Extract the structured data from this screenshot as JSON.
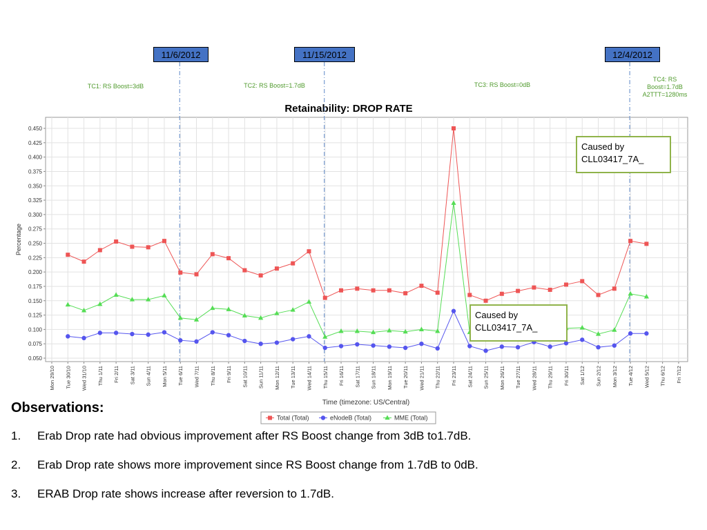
{
  "annotations": {
    "dates": [
      {
        "label": "11/6/2012",
        "x": "Tue 6/11"
      },
      {
        "label": "11/15/2012",
        "x": "Thu 15/11"
      },
      {
        "label": "12/4/2012",
        "x": "Tue 4/12"
      }
    ],
    "test_cases": [
      {
        "label": "TC1: RS Boost=3dB"
      },
      {
        "label": "TC2: RS Boost=1.7dB"
      },
      {
        "label": "TC3: RS Boost=0dB"
      },
      {
        "label": "TC4: RS Boost=1.7dB A2TTT=1280ms"
      }
    ],
    "callouts": [
      {
        "text": "Caused by CLL03417_7A_"
      },
      {
        "text": "Caused by CLL03417_7A_"
      }
    ]
  },
  "chart_data": {
    "type": "line",
    "title": "Retainability: DROP RATE",
    "xlabel": "Time (timezone: US/Central)",
    "ylabel": "Percentage",
    "ylim": [
      0.05,
      0.46
    ],
    "yticks": [
      0.05,
      0.075,
      0.1,
      0.125,
      0.15,
      0.175,
      0.2,
      0.225,
      0.25,
      0.275,
      0.3,
      0.325,
      0.35,
      0.375,
      0.4,
      0.425,
      0.45
    ],
    "grid": true,
    "legend_position": "bottom",
    "categories": [
      "Mon 29/10",
      "Tue 30/10",
      "Wed 31/10",
      "Thu 1/11",
      "Fri 2/11",
      "Sat 3/11",
      "Sun 4/11",
      "Mon 5/11",
      "Tue 6/11",
      "Wed 7/11",
      "Thu 8/11",
      "Fri 9/11",
      "Sat 10/11",
      "Sun 11/11",
      "Mon 12/11",
      "Tue 13/11",
      "Wed 14/11",
      "Thu 15/11",
      "Fri 16/11",
      "Sat 17/11",
      "Sun 18/11",
      "Mon 19/11",
      "Tue 20/11",
      "Wed 21/11",
      "Thu 22/11",
      "Fri 23/11",
      "Sat 24/11",
      "Sun 25/11",
      "Mon 26/11",
      "Tue 27/11",
      "Wed 28/11",
      "Thu 29/11",
      "Fri 30/11",
      "Sat 1/12",
      "Sun 2/12",
      "Mon 3/12",
      "Tue 4/12",
      "Wed 5/12",
      "Thu 6/12",
      "Fri 7/12"
    ],
    "series": [
      {
        "name": "Total (Total)",
        "color": "#ee5555",
        "marker": "square",
        "x": [
          "Tue 30/10",
          "Wed 31/10",
          "Thu 1/11",
          "Fri 2/11",
          "Sat 3/11",
          "Sun 4/11",
          "Mon 5/11",
          "Tue 6/11",
          "Wed 7/11",
          "Thu 8/11",
          "Fri 9/11",
          "Sat 10/11",
          "Sun 11/11",
          "Mon 12/11",
          "Tue 13/11",
          "Wed 14/11",
          "Thu 15/11",
          "Fri 16/11",
          "Sat 17/11",
          "Sun 18/11",
          "Mon 19/11",
          "Tue 20/11",
          "Wed 21/11",
          "Thu 22/11",
          "Fri 23/11",
          "Sat 24/11",
          "Sun 25/11",
          "Mon 26/11",
          "Tue 27/11",
          "Wed 28/11",
          "Thu 29/11",
          "Fri 30/11",
          "Sat 1/12",
          "Sun 2/12",
          "Mon 3/12",
          "Tue 4/12",
          "Wed 5/12"
        ],
        "values": [
          0.23,
          0.218,
          0.238,
          0.253,
          0.244,
          0.243,
          0.254,
          0.199,
          0.196,
          0.231,
          0.224,
          0.203,
          0.194,
          0.206,
          0.215,
          0.236,
          0.155,
          0.168,
          0.171,
          0.168,
          0.168,
          0.163,
          0.176,
          0.164,
          0.45,
          0.16,
          0.15,
          0.162,
          0.167,
          0.173,
          0.169,
          0.178,
          0.184,
          0.16,
          0.171,
          0.254,
          0.249
        ]
      },
      {
        "name": "eNodeB (Total)",
        "color": "#5555ee",
        "marker": "circle",
        "x": [
          "Tue 30/10",
          "Wed 31/10",
          "Thu 1/11",
          "Fri 2/11",
          "Sat 3/11",
          "Sun 4/11",
          "Mon 5/11",
          "Tue 6/11",
          "Wed 7/11",
          "Thu 8/11",
          "Fri 9/11",
          "Sat 10/11",
          "Sun 11/11",
          "Mon 12/11",
          "Tue 13/11",
          "Wed 14/11",
          "Thu 15/11",
          "Fri 16/11",
          "Sat 17/11",
          "Sun 18/11",
          "Mon 19/11",
          "Tue 20/11",
          "Wed 21/11",
          "Thu 22/11",
          "Fri 23/11",
          "Sat 24/11",
          "Sun 25/11",
          "Mon 26/11",
          "Tue 27/11",
          "Wed 28/11",
          "Thu 29/11",
          "Fri 30/11",
          "Sat 1/12",
          "Sun 2/12",
          "Mon 3/12",
          "Tue 4/12",
          "Wed 5/12"
        ],
        "values": [
          0.088,
          0.085,
          0.094,
          0.094,
          0.092,
          0.091,
          0.095,
          0.081,
          0.079,
          0.095,
          0.09,
          0.08,
          0.075,
          0.077,
          0.083,
          0.088,
          0.068,
          0.071,
          0.074,
          0.072,
          0.07,
          0.068,
          0.075,
          0.067,
          0.132,
          0.071,
          0.063,
          0.07,
          0.069,
          0.078,
          0.07,
          0.076,
          0.082,
          0.069,
          0.072,
          0.093,
          0.093
        ]
      },
      {
        "name": "MME (Total)",
        "color": "#55dd55",
        "marker": "triangle",
        "x": [
          "Tue 30/10",
          "Wed 31/10",
          "Thu 1/11",
          "Fri 2/11",
          "Sat 3/11",
          "Sun 4/11",
          "Mon 5/11",
          "Tue 6/11",
          "Wed 7/11",
          "Thu 8/11",
          "Fri 9/11",
          "Sat 10/11",
          "Sun 11/11",
          "Mon 12/11",
          "Tue 13/11",
          "Wed 14/11",
          "Thu 15/11",
          "Fri 16/11",
          "Sat 17/11",
          "Sun 18/11",
          "Mon 19/11",
          "Tue 20/11",
          "Wed 21/11",
          "Thu 22/11",
          "Fri 23/11",
          "Sat 24/11",
          "Sun 25/11",
          "Mon 26/11",
          "Tue 27/11",
          "Wed 28/11",
          "Thu 29/11",
          "Fri 30/11",
          "Sat 1/12",
          "Sun 2/12",
          "Mon 3/12",
          "Tue 4/12",
          "Wed 5/12"
        ],
        "values": [
          0.143,
          0.133,
          0.144,
          0.16,
          0.152,
          0.152,
          0.159,
          0.12,
          0.117,
          0.137,
          0.135,
          0.124,
          0.12,
          0.128,
          0.134,
          0.148,
          0.087,
          0.097,
          0.097,
          0.095,
          0.098,
          0.096,
          0.1,
          0.097,
          0.32,
          0.095,
          0.095,
          0.098,
          0.098,
          0.098,
          0.1,
          0.102,
          0.103,
          0.092,
          0.099,
          0.162,
          0.157
        ]
      }
    ]
  },
  "observations": {
    "title": "Observations:",
    "items": [
      {
        "num": "1.",
        "text": "Erab Drop rate had obvious improvement after RS Boost change from 3dB to1.7dB."
      },
      {
        "num": "2.",
        "text": "Erab Drop rate shows more improvement since RS Boost change from 1.7dB to 0dB."
      },
      {
        "num": "3.",
        "text": "ERAB Drop rate shows increase after reversion to 1.7dB."
      }
    ]
  }
}
